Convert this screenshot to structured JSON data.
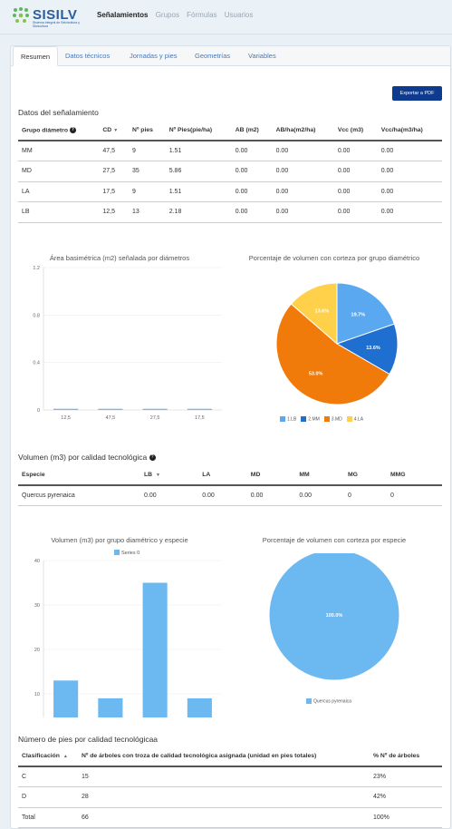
{
  "header": {
    "logo_text": "SISILV",
    "logo_subtitle": "Sistema Integral de Selvicultura y Silvicultura",
    "nav": [
      {
        "label": "Señalamientos",
        "active": true
      },
      {
        "label": "Grupos",
        "active": false
      },
      {
        "label": "Fórmulas",
        "active": false
      },
      {
        "label": "Usuarios",
        "active": false
      }
    ]
  },
  "tabs": [
    {
      "label": "Resumen",
      "active": true
    },
    {
      "label": "Datos técnicos",
      "active": false
    },
    {
      "label": "Jornadas y pies",
      "active": false
    },
    {
      "label": "Geometrías",
      "active": false
    },
    {
      "label": "Variables",
      "active": false
    }
  ],
  "export_button": "Exportar a PDF",
  "datos": {
    "title": "Datos del señalamiento",
    "headers": [
      "Grupo diámetro",
      "CD",
      "Nº pies",
      "Nº Pies(pie/ha)",
      "AB (m2)",
      "AB/ha(m2/ha)",
      "Vcc (m3)",
      "Vcc/ha(m3/ha)"
    ],
    "rows": [
      [
        "MM",
        "47,5",
        "9",
        "1.51",
        "0.00",
        "0.00",
        "0.00",
        "0.00"
      ],
      [
        "MD",
        "27,5",
        "35",
        "5.86",
        "0.00",
        "0.00",
        "0.00",
        "0.00"
      ],
      [
        "LA",
        "17,5",
        "9",
        "1.51",
        "0.00",
        "0.00",
        "0.00",
        "0.00"
      ],
      [
        "LB",
        "12,5",
        "13",
        "2.18",
        "0.00",
        "0.00",
        "0.00",
        "0.00"
      ]
    ]
  },
  "volumen": {
    "title": "Volumen (m3) por calidad tecnológica",
    "headers": [
      "Especie",
      "LB",
      "LA",
      "MD",
      "MM",
      "MG",
      "MMG"
    ],
    "rows": [
      [
        "Quercus pyrenaica",
        "0.00",
        "0.00",
        "0.00",
        "0.00",
        "0",
        "0"
      ]
    ]
  },
  "pies": {
    "title": "Número de pies por calidad tecnológicaa",
    "headers": [
      "Clasificación",
      "Nº de árboles con troza de calidad tecnológica asignada (unidad en pies totales)",
      "% Nº de árboles"
    ],
    "rows": [
      [
        "C",
        "15",
        "23%"
      ],
      [
        "D",
        "28",
        "42%"
      ],
      [
        "Total",
        "66",
        "100%"
      ]
    ]
  },
  "chart_data": [
    {
      "type": "bar",
      "title": "Área basimétrica (m2) señalada por diámetros",
      "categories": [
        "12,5",
        "47,5",
        "27,5",
        "17,5"
      ],
      "values": [
        0.01,
        0.01,
        0.01,
        0.01
      ],
      "ylim": [
        0,
        1.2
      ],
      "yticks": [
        "0",
        "0.4",
        "0.8",
        "1.2"
      ],
      "color": "#7cb5ec"
    },
    {
      "type": "pie",
      "title": "Porcentaje de volumen con corteza por grupo diamétrico",
      "slices": [
        {
          "label": "1.LB",
          "value": 19.7,
          "display": "19.7%",
          "color": "#5aa9f0"
        },
        {
          "label": "2.MM",
          "value": 13.6,
          "display": "13.6%",
          "color": "#1f6fd1"
        },
        {
          "label": "3.MD",
          "value": 53.0,
          "display": "53.0%",
          "color": "#f07a0a"
        },
        {
          "label": "4.LA",
          "value": 13.6,
          "display": "13.6%",
          "color": "#ffd04a"
        }
      ]
    },
    {
      "type": "bar",
      "title": "Volumen (m3) por grupo diamétrico y especie",
      "categories": [
        "LB",
        "MM",
        "MD",
        "LA"
      ],
      "series": [
        {
          "name": "Series 0",
          "values": [
            13,
            9,
            35,
            9
          ]
        }
      ],
      "ylim": [
        0,
        40
      ],
      "yticks": [
        "0",
        "10",
        "20",
        "30",
        "40"
      ],
      "color": "#6cb8f0"
    },
    {
      "type": "pie",
      "title": "Porcentaje de volumen con corteza por especie",
      "slices": [
        {
          "label": "Quercus pyrenaica",
          "value": 100.0,
          "display": "100.0%",
          "color": "#6cb8f0"
        }
      ]
    }
  ]
}
